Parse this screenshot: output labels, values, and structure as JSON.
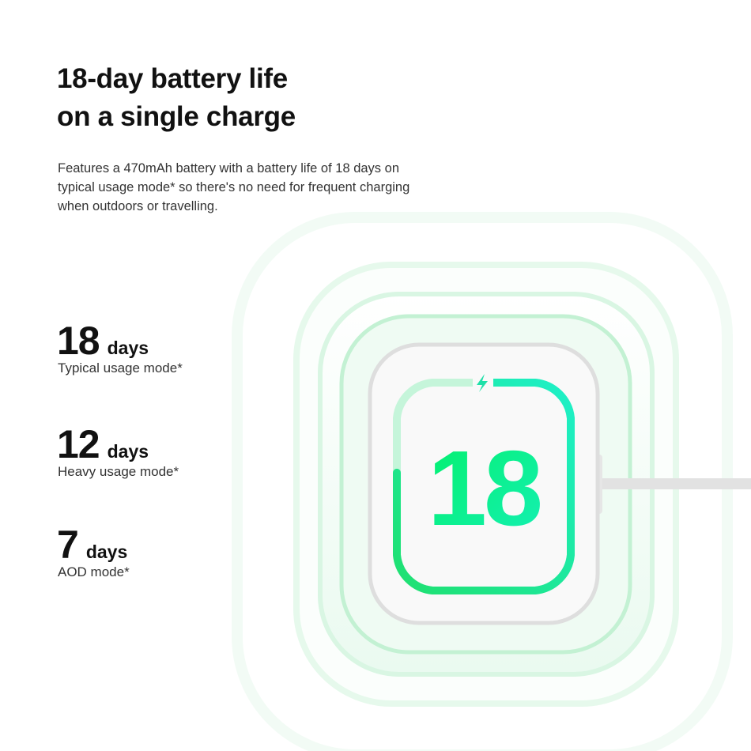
{
  "heading": {
    "line1": "18-day battery life",
    "line2": "on a single charge"
  },
  "description": "Features a 470mAh battery with a battery life of 18 days on typical usage mode* so there's no need for frequent charging when outdoors or travelling.",
  "stats": [
    {
      "value": "18",
      "unit": "days",
      "label": "Typical usage mode*"
    },
    {
      "value": "12",
      "unit": "days",
      "label": "Heavy usage mode*"
    },
    {
      "value": "7",
      "unit": "days",
      "label": "AOD mode*"
    }
  ],
  "watch": {
    "display_value": "18",
    "charge_progress": 0.77,
    "icon": "lightning-bolt-icon",
    "accent_colors": [
      "#00f060",
      "#18f0c0"
    ]
  }
}
